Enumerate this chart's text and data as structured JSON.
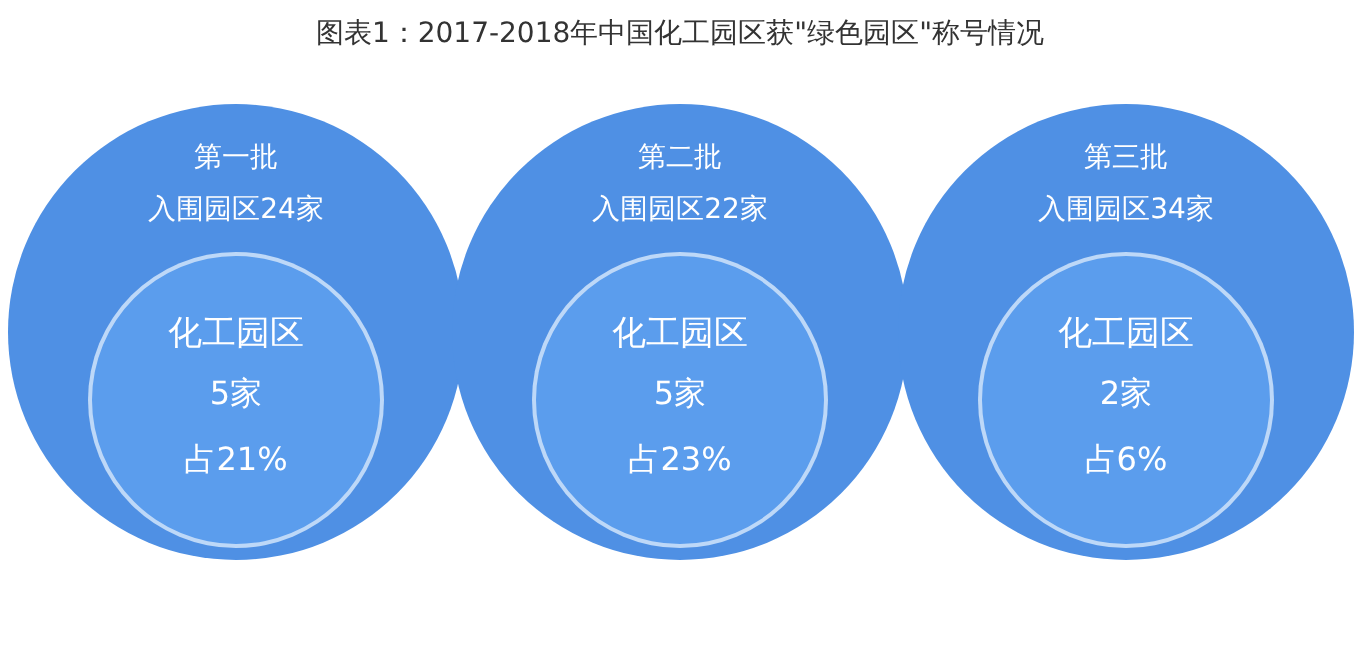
{
  "chart_data": {
    "type": "other",
    "title": "图表1：2017-2018年中国化工园区获\"绿色园区\"称号情况",
    "categories": [
      "第一批",
      "第二批",
      "第三批"
    ],
    "series": [
      {
        "color": "#4f90e4",
        "values": [
          24,
          22,
          34
        ],
        "value_labels": [
          "入围园区24家",
          "入围园区22家",
          "入围园区34家"
        ]
      },
      {
        "name": "化工园区",
        "color": "#5b9ded",
        "values": [
          5,
          5,
          2
        ],
        "value_labels": [
          "5家",
          "5家",
          "2家"
        ]
      },
      {
        "color": "#ffffff",
        "values": [
          21,
          23,
          6
        ],
        "value_labels": [
          "占21%",
          "占23%",
          "占6%"
        ]
      }
    ]
  }
}
